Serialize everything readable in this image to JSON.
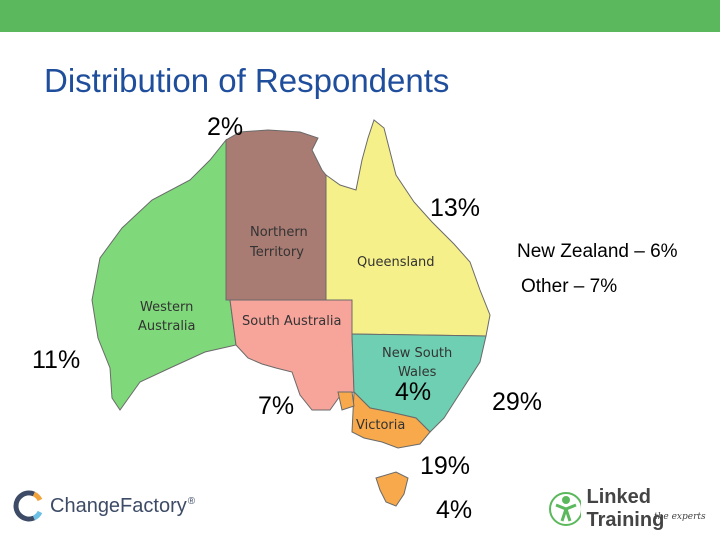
{
  "title": "Distribution of Respondents",
  "map": {
    "regions": {
      "northern_territory": {
        "label_line1": "Northern",
        "label_line2": "Territory",
        "color": "#a97c73"
      },
      "queensland": {
        "label": "Queensland",
        "color": "#f6f08a"
      },
      "western_australia": {
        "label_line1": "Western",
        "label_line2": "Australia",
        "color": "#7fd97a"
      },
      "south_australia": {
        "label": "South Australia",
        "color": "#f7a49b"
      },
      "new_south_wales": {
        "label_line1": "New South",
        "label_line2": "Wales",
        "color": "#6fcfb2"
      },
      "victoria": {
        "label": "Victoria",
        "color": "#f7a94b"
      },
      "tasmania": {
        "color": "#f7a94b"
      },
      "act": {
        "color": "#f7a94b"
      }
    }
  },
  "percentages": {
    "northern_territory": "2%",
    "queensland": "13%",
    "western_australia": "11%",
    "south_australia": "7%",
    "act": "4%",
    "new_south_wales": "29%",
    "victoria": "19%",
    "tasmania": "4%"
  },
  "other_regions": {
    "new_zealand": "New Zealand – 6%",
    "other": "Other – 7%"
  },
  "logos": {
    "left": {
      "name": "Change Factory",
      "text": "ChangeFactory",
      "mark": "®"
    },
    "right": {
      "name": "Linked Training",
      "text": "Linked Training",
      "tagline": "the experts"
    }
  },
  "colors": {
    "title": "#1f4e9c",
    "topbar": "#5cb85c"
  }
}
